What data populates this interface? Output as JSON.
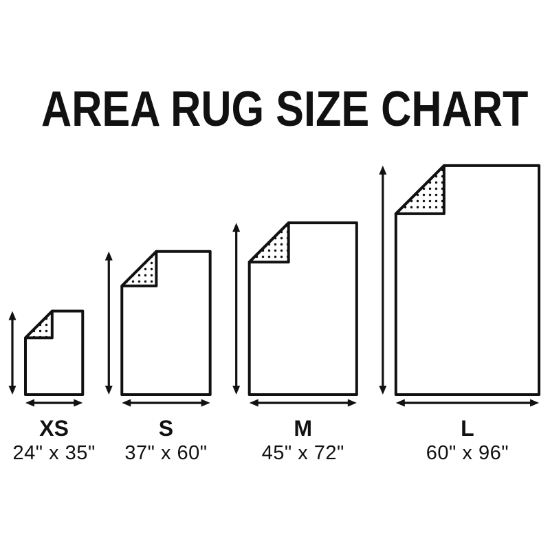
{
  "title": "AREA RUG SIZE CHART",
  "colors": {
    "ink": "#111111",
    "background": "#ffffff",
    "rug_fill": "#ffffff"
  },
  "chart_data": {
    "type": "size-diagram",
    "title": "AREA RUG SIZE CHART",
    "unit": "inches",
    "sizes": [
      {
        "label": "XS",
        "dimensions": "24\" x 35\"",
        "width_in": 24,
        "height_in": 35
      },
      {
        "label": "S",
        "dimensions": "37\" x 60\"",
        "width_in": 37,
        "height_in": 60
      },
      {
        "label": "M",
        "dimensions": "45\" x 72\"",
        "width_in": 45,
        "height_in": 72
      },
      {
        "label": "L",
        "dimensions": "60\" x 96\"",
        "width_in": 60,
        "height_in": 96
      }
    ]
  }
}
